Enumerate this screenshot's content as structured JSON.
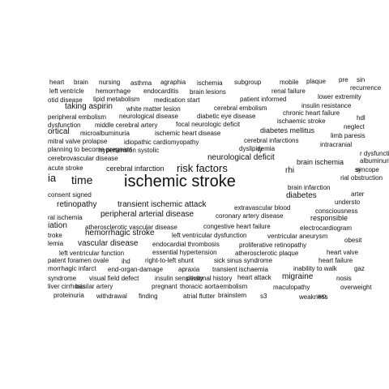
{
  "words": [
    "heart",
    "brain",
    "nursing",
    "asthma",
    "agraphia",
    "ischemia",
    "subgroup",
    "mobile",
    "plaque",
    "pre",
    "sin",
    "left ventricle",
    "hemorrhage",
    "endocarditis",
    "brain lesions",
    "renal failure",
    "recurrence",
    "otid disease",
    "lipid metabolism",
    "medication start",
    "patient informed",
    "lower extremity",
    "taking aspirin",
    "white matter lesion",
    "cerebral embolism",
    "insulin resistance",
    "peripheral embolism",
    "neurological disease",
    "diabetic eye disease",
    "chronic heart failure",
    "hdl",
    "dysfunction",
    "middle cerebral artery",
    "focal neurologic deficit",
    "ischaemic stroke",
    "ortical",
    "microalbuminuria",
    "ischemic heart disease",
    "diabetes mellitus",
    "neglect",
    "limb paresis",
    "mitral valve prolapse",
    "idiopathic cardiomyopathy",
    "cerebral infarctions",
    "intracranial",
    "r dysfunction",
    "planning to become pregnant",
    "hypertension systolic",
    "dyslipidemia",
    "ly",
    "albuminuria",
    "cerebrovascular disease",
    "neurological deficit",
    "brain ischemia",
    "si",
    "rial obstruction",
    "acute stroke",
    "cerebral infarction",
    "risk factors",
    "rhi",
    "syncope",
    "ia",
    "time",
    "ischemic stroke",
    "brain infarction",
    "arter",
    "consent signed",
    "diabetes",
    "understo",
    "retinopathy",
    "transient ischemic attack",
    "extravascular blood",
    "consciousness",
    "ral ischemia",
    "peripheral arterial disease",
    "coronary artery disease",
    "responsible",
    "iation",
    "atherosclerotic vascular disease",
    "congestive heart failure",
    "electrocardiogram",
    "troke",
    "hemorrhagic stroke",
    "left ventricular dysfunction",
    "ventricular aneurysm",
    "obesit",
    "lemia",
    "vascular disease",
    "endocardial thrombosis",
    "proliferative retinopathy",
    "left ventricular function",
    "essential hypertension",
    "atherosclerotic plaque",
    "heart valve",
    "patent foramen ovale",
    "ihd",
    "right-to-left shunt",
    "sick sinus syndrome",
    "heart failure",
    "morrhagic infarct",
    "end-organ-damage",
    "apraxia",
    "transient ischaemia",
    "inability to walk",
    "gaz",
    "syndrome",
    "visual field defect",
    "insulin sensitivity",
    "personal history",
    "heart attack",
    "migraine",
    "nosis",
    "liver cirrhosis",
    "basilar artery",
    "pregnant",
    "thoracic aorta",
    "embolism",
    "maculopathy",
    "overweight",
    "proteinuria",
    "withdrawal",
    "finding",
    "atrial flutter",
    "brainstem",
    "s3",
    "weakness",
    "wo"
  ]
}
